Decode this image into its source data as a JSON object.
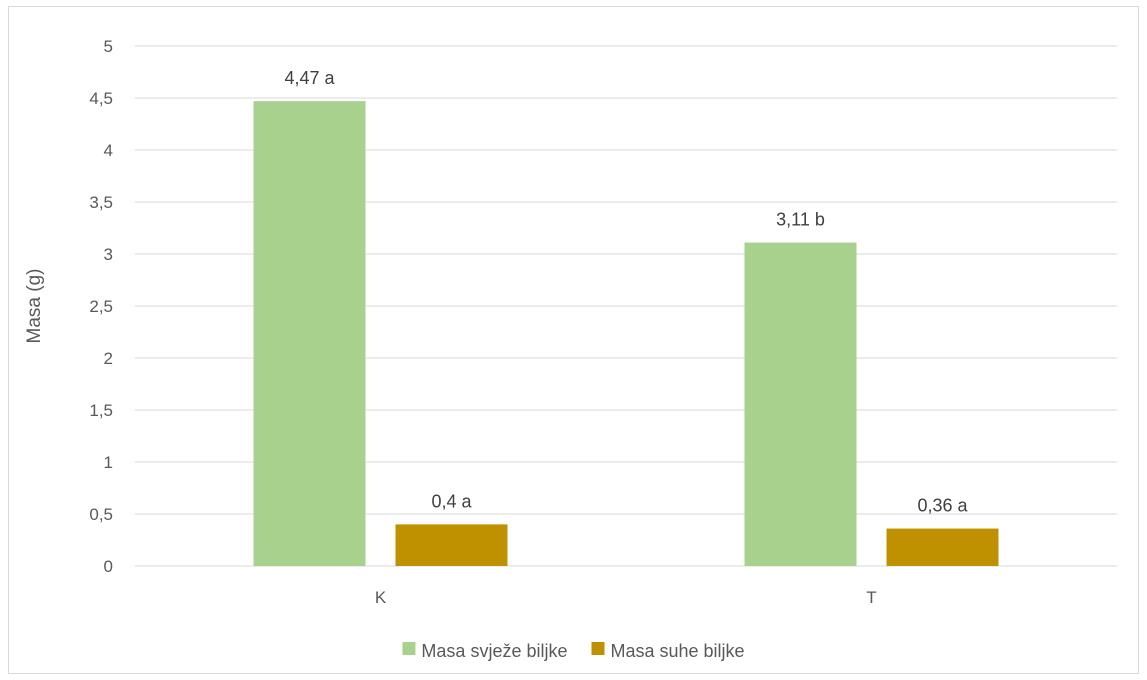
{
  "chart_data": {
    "type": "bar",
    "categories": [
      "K",
      "T"
    ],
    "series": [
      {
        "name": "Masa svježe biljke",
        "values": [
          4.47,
          3.11
        ],
        "labels": [
          "4,47 a",
          "3,11 b"
        ],
        "color": "#a9d18e"
      },
      {
        "name": "Masa suhe biljke",
        "values": [
          0.4,
          0.36
        ],
        "labels": [
          "0,4 a",
          "0,36 a"
        ],
        "color": "#bf9000"
      }
    ],
    "ylabel": "Masa (g)",
    "xlabel": "",
    "ylim": [
      0,
      5
    ],
    "yticks": [
      0,
      0.5,
      1,
      1.5,
      2,
      2.5,
      3,
      3.5,
      4,
      4.5,
      5
    ],
    "ytick_labels": [
      "0",
      "0,5",
      "1",
      "1,5",
      "2",
      "2,5",
      "3",
      "3,5",
      "4",
      "4,5",
      "5"
    ],
    "grid": true,
    "legend_position": "bottom",
    "gridline_color": "#d9d9d9"
  }
}
